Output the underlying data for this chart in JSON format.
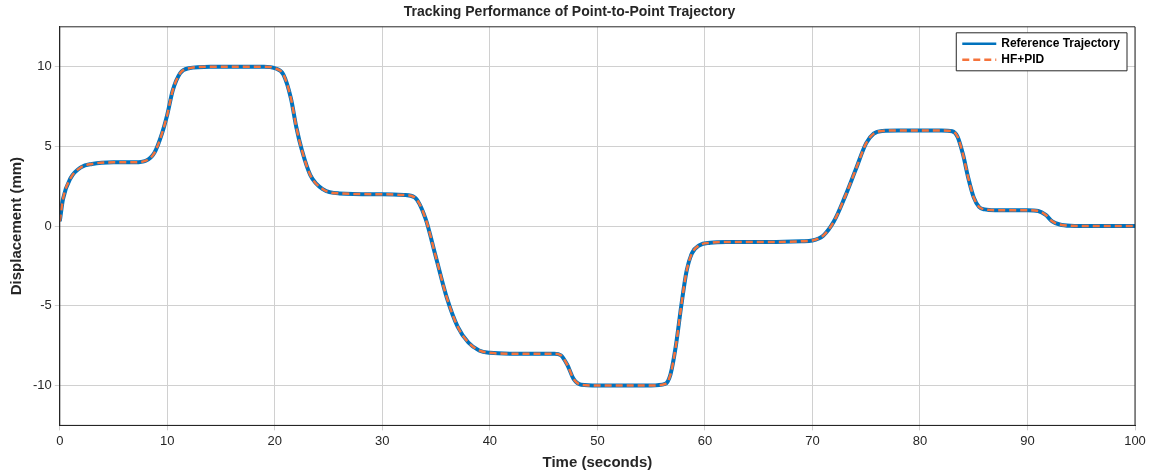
{
  "chart_data": {
    "type": "line",
    "title": "Tracking Performance of Point-to-Point Trajectory",
    "xlabel": "Time (seconds)",
    "ylabel": "Displacement (mm)",
    "xlim": [
      0,
      100
    ],
    "xticks": [
      0,
      10,
      20,
      30,
      40,
      50,
      60,
      70,
      80,
      90,
      100
    ],
    "ylim": [
      -12.5,
      12.5
    ],
    "yticks": [
      -10,
      -5,
      0,
      5,
      10
    ],
    "grid": true,
    "legend": "top right",
    "marker": "none",
    "x": [
      0,
      0.3,
      1,
      2,
      3,
      5,
      7,
      8,
      8.8,
      9.5,
      10,
      10.5,
      11.2,
      12,
      14,
      19,
      20,
      20.8,
      21.5,
      22,
      22.5,
      23.3,
      24.5,
      26,
      30,
      32,
      33,
      34,
      35,
      36,
      37,
      38,
      39,
      40,
      42,
      45,
      46,
      46.6,
      47.2,
      47.8,
      48.5,
      50,
      55,
      56.3,
      56.8,
      57.3,
      57.8,
      58.3,
      58.8,
      59.5,
      60.5,
      62,
      66,
      69,
      70,
      71,
      72,
      73,
      74,
      75,
      75.7,
      76.5,
      78,
      82,
      83,
      83.5,
      84,
      84.5,
      85,
      85.5,
      86,
      87,
      90,
      91,
      91.7,
      92.3,
      93,
      94,
      96,
      100
    ],
    "series": [
      {
        "name": "Reference Trajectory",
        "color": "#0072bd",
        "line_style": "solid",
        "values": [
          0.3,
          1.7,
          3.0,
          3.7,
          3.9,
          4,
          4,
          4.1,
          4.6,
          5.8,
          7,
          8.5,
          9.6,
          9.9,
          10,
          10,
          9.9,
          9.5,
          8,
          6.2,
          4.8,
          3.2,
          2.3,
          2.05,
          2,
          1.95,
          1.8,
          0.5,
          -2,
          -4.5,
          -6.3,
          -7.3,
          -7.8,
          -7.95,
          -8,
          -8,
          -8,
          -8.1,
          -8.7,
          -9.6,
          -9.95,
          -10,
          -10,
          -9.9,
          -9.3,
          -7.5,
          -5,
          -2.8,
          -1.7,
          -1.2,
          -1.05,
          -1,
          -1,
          -0.95,
          -0.9,
          -0.6,
          0.3,
          1.8,
          3.5,
          5.2,
          5.8,
          5.97,
          6,
          6,
          5.95,
          5.6,
          4.5,
          3,
          1.8,
          1.2,
          1.05,
          1,
          1,
          0.95,
          0.7,
          0.3,
          0.1,
          0.02,
          0,
          0
        ]
      },
      {
        "name": "HF+PID",
        "color": "#f5733b",
        "line_style": "dashed",
        "values": [
          0.3,
          1.7,
          3.0,
          3.7,
          3.9,
          4,
          4,
          4.1,
          4.6,
          5.8,
          7,
          8.5,
          9.6,
          9.9,
          10,
          10,
          9.9,
          9.5,
          8,
          6.2,
          4.8,
          3.2,
          2.3,
          2.05,
          2,
          1.95,
          1.8,
          0.5,
          -2,
          -4.5,
          -6.3,
          -7.3,
          -7.8,
          -7.95,
          -8,
          -8,
          -8,
          -8.1,
          -8.7,
          -9.6,
          -9.95,
          -10,
          -10,
          -9.9,
          -9.3,
          -7.5,
          -5,
          -2.8,
          -1.7,
          -1.2,
          -1.05,
          -1,
          -1,
          -0.95,
          -0.9,
          -0.6,
          0.3,
          1.8,
          3.5,
          5.2,
          5.8,
          5.97,
          6,
          6,
          5.95,
          5.6,
          4.5,
          3,
          1.8,
          1.2,
          1.05,
          1,
          1,
          0.95,
          0.7,
          0.3,
          0.1,
          0.02,
          0,
          0
        ]
      }
    ]
  }
}
